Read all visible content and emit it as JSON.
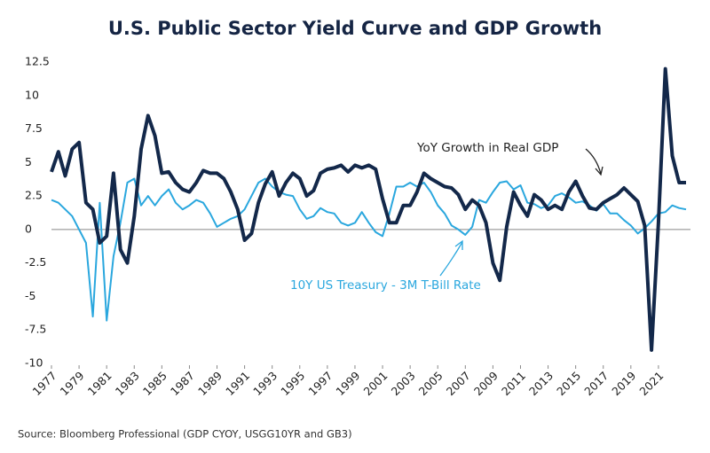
{
  "chart_data": {
    "type": "line",
    "title": "U.S. Public Sector Yield Curve and GDP Growth",
    "source": "Source: Bloomberg Professional (GDP CYOY, USGG10YR and GB3)",
    "annotations": [
      "YoY Growth in Real GDP",
      "10Y US Treasury - 3M T-Bill Rate"
    ],
    "x": [
      1977,
      1977.5,
      1978,
      1978.5,
      1979,
      1979.5,
      1980,
      1980.5,
      1981,
      1981.5,
      1982,
      1982.5,
      1983,
      1983.5,
      1984,
      1984.5,
      1985,
      1985.5,
      1986,
      1986.5,
      1987,
      1987.5,
      1988,
      1988.5,
      1989,
      1989.5,
      1990,
      1990.5,
      1991,
      1991.5,
      1992,
      1992.5,
      1993,
      1993.5,
      1994,
      1994.5,
      1995,
      1995.5,
      1996,
      1996.5,
      1997,
      1997.5,
      1998,
      1998.5,
      1999,
      1999.5,
      2000,
      2000.5,
      2001,
      2001.5,
      2002,
      2002.5,
      2003,
      2003.5,
      2004,
      2004.5,
      2005,
      2005.5,
      2006,
      2006.5,
      2007,
      2007.5,
      2008,
      2008.5,
      2009,
      2009.5,
      2010,
      2010.5,
      2011,
      2011.5,
      2012,
      2012.5,
      2013,
      2013.5,
      2014,
      2014.5,
      2015,
      2015.5,
      2016,
      2016.5,
      2017,
      2017.5,
      2018,
      2018.5,
      2019,
      2019.5,
      2020,
      2020.5,
      2021,
      2021.5,
      2022,
      2022.5,
      2023
    ],
    "series": [
      {
        "name": "YoY Growth in Real GDP",
        "color": "#13284a",
        "width": 4,
        "values": [
          4.3,
          5.8,
          4.0,
          6.0,
          6.5,
          2.0,
          1.5,
          -1.0,
          -0.5,
          4.2,
          -1.5,
          -2.5,
          1.0,
          6.0,
          8.5,
          7.0,
          4.2,
          4.3,
          3.5,
          3.0,
          2.8,
          3.5,
          4.4,
          4.2,
          4.2,
          3.8,
          2.8,
          1.5,
          -0.8,
          -0.3,
          2.0,
          3.4,
          4.3,
          2.5,
          3.5,
          4.2,
          3.8,
          2.5,
          2.9,
          4.2,
          4.5,
          4.6,
          4.8,
          4.3,
          4.8,
          4.6,
          4.8,
          4.5,
          2.3,
          0.5,
          0.5,
          1.8,
          1.8,
          2.8,
          4.2,
          3.8,
          3.5,
          3.2,
          3.1,
          2.6,
          1.5,
          2.2,
          1.8,
          0.5,
          -2.5,
          -3.8,
          0.2,
          2.8,
          1.8,
          1.0,
          2.6,
          2.2,
          1.5,
          1.8,
          1.5,
          2.8,
          3.6,
          2.5,
          1.6,
          1.5,
          2.0,
          2.3,
          2.6,
          3.1,
          2.6,
          2.1,
          0.3,
          -9.0,
          0.5,
          12.0,
          5.5,
          3.5,
          3.5
        ]
      },
      {
        "name": "10Y US Treasury - 3M T-Bill Rate",
        "color": "#2aa7de",
        "width": 2,
        "values": [
          2.2,
          2.0,
          1.5,
          1.0,
          0.0,
          -1.0,
          -6.5,
          2.0,
          -6.8,
          -2.0,
          0.5,
          3.5,
          3.8,
          1.8,
          2.5,
          1.8,
          2.5,
          3.0,
          2.0,
          1.5,
          1.8,
          2.2,
          2.0,
          1.2,
          0.2,
          0.5,
          0.8,
          1.0,
          1.5,
          2.5,
          3.5,
          3.8,
          3.2,
          2.8,
          2.6,
          2.5,
          1.5,
          0.8,
          1.0,
          1.6,
          1.3,
          1.2,
          0.5,
          0.3,
          0.5,
          1.3,
          0.5,
          -0.2,
          -0.5,
          1.2,
          3.2,
          3.2,
          3.5,
          3.2,
          3.5,
          2.8,
          1.8,
          1.2,
          0.3,
          0.0,
          -0.4,
          0.2,
          2.2,
          2.0,
          2.8,
          3.5,
          3.6,
          3.0,
          3.3,
          2.0,
          1.9,
          1.6,
          1.8,
          2.5,
          2.7,
          2.4,
          2.0,
          2.1,
          1.8,
          1.4,
          1.9,
          1.2,
          1.2,
          0.7,
          0.3,
          -0.3,
          0.1,
          0.6,
          1.2,
          1.3,
          1.8,
          1.6,
          1.5
        ]
      }
    ],
    "xlim": [
      1977,
      2023
    ],
    "xticks": [
      1977,
      1979,
      1981,
      1983,
      1985,
      1987,
      1989,
      1991,
      1993,
      1995,
      1997,
      1999,
      2001,
      2003,
      2005,
      2007,
      2009,
      2011,
      2013,
      2015,
      2017,
      2019,
      2021
    ],
    "ylim": [
      -10,
      12.5
    ],
    "yticks": [
      12.5,
      10,
      7.5,
      5,
      2.5,
      0,
      -2.5,
      -5,
      -7.5,
      -10
    ]
  }
}
